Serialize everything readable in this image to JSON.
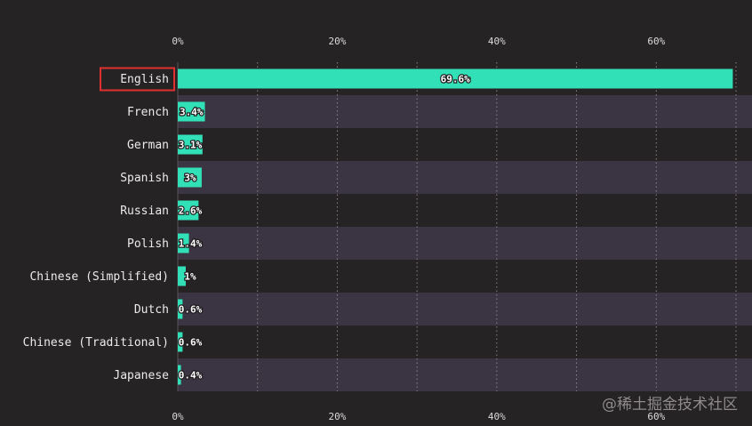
{
  "chart_data": {
    "type": "bar",
    "orientation": "horizontal",
    "categories": [
      "English",
      "French",
      "German",
      "Spanish",
      "Russian",
      "Polish",
      "Chinese (Simplified)",
      "Dutch",
      "Chinese (Traditional)",
      "Japanese"
    ],
    "values": [
      69.6,
      3.4,
      3.1,
      3,
      2.6,
      1.4,
      1,
      0.6,
      0.6,
      0.4
    ],
    "value_labels": [
      "69.6%",
      "3.4%",
      "3.1%",
      "3%",
      "2.6%",
      "1.4%",
      "1%",
      "0.6%",
      "0.6%",
      "0.4%"
    ],
    "xlim": [
      0,
      70
    ],
    "x_ticks": [
      0,
      20,
      40,
      60
    ],
    "x_tick_labels": [
      "0%",
      "20%",
      "40%",
      "60%"
    ],
    "grid": true,
    "highlighted_category": "English",
    "colors": {
      "bar": "#32e0b8",
      "track": "#3b3543",
      "background": "#262324",
      "highlight_box": "#e03030",
      "grid": "#8a8486"
    }
  },
  "watermark": "@稀土掘金技术社区"
}
